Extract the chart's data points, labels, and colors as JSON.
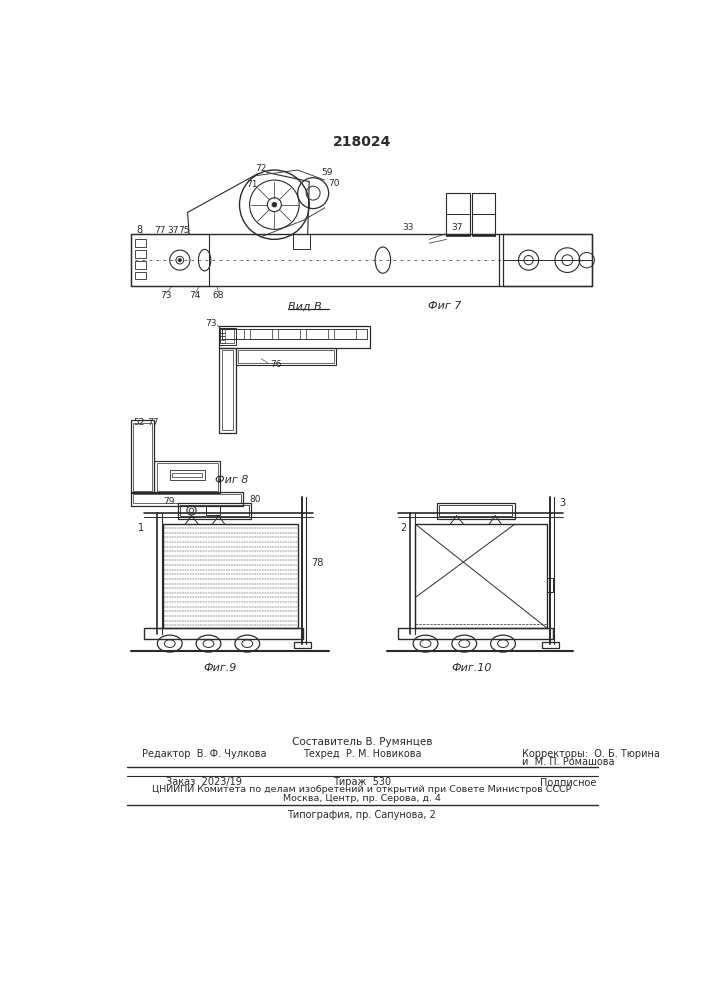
{
  "patent_number": "218024",
  "bg_color": "#ffffff",
  "line_color": "#2a2a2a",
  "fig7_label": "Фиг 7",
  "fig8_label": "Фиг 8",
  "view_b_label": "Вид В",
  "fig9_label": "Фиг.9",
  "fig10_label": "Фиг.10",
  "footer_sestavitel": "Составитель В. Румянцев",
  "footer_redaktor": "Редактор  В. Ф. Чулкова",
  "footer_tehred": "Техред  Р. М. Новикова",
  "footer_korrektory": "Корректоры:  О. Б. Тюрина",
  "footer_korrektory2": "и  М. П. Ромашова",
  "footer_zakaz": "Заказ  2023/19",
  "footer_tirazh": "Тираж  530",
  "footer_podpisnoe": "Подписное",
  "footer_tsniip": "ЦНИИПИ Комитета по делам изобретений и открытий при Совете Министров СССР",
  "footer_moskva": "Москва, Центр, пр. Серова, д. 4",
  "footer_tipografiya": "Типография, пр. Сапунова, 2"
}
